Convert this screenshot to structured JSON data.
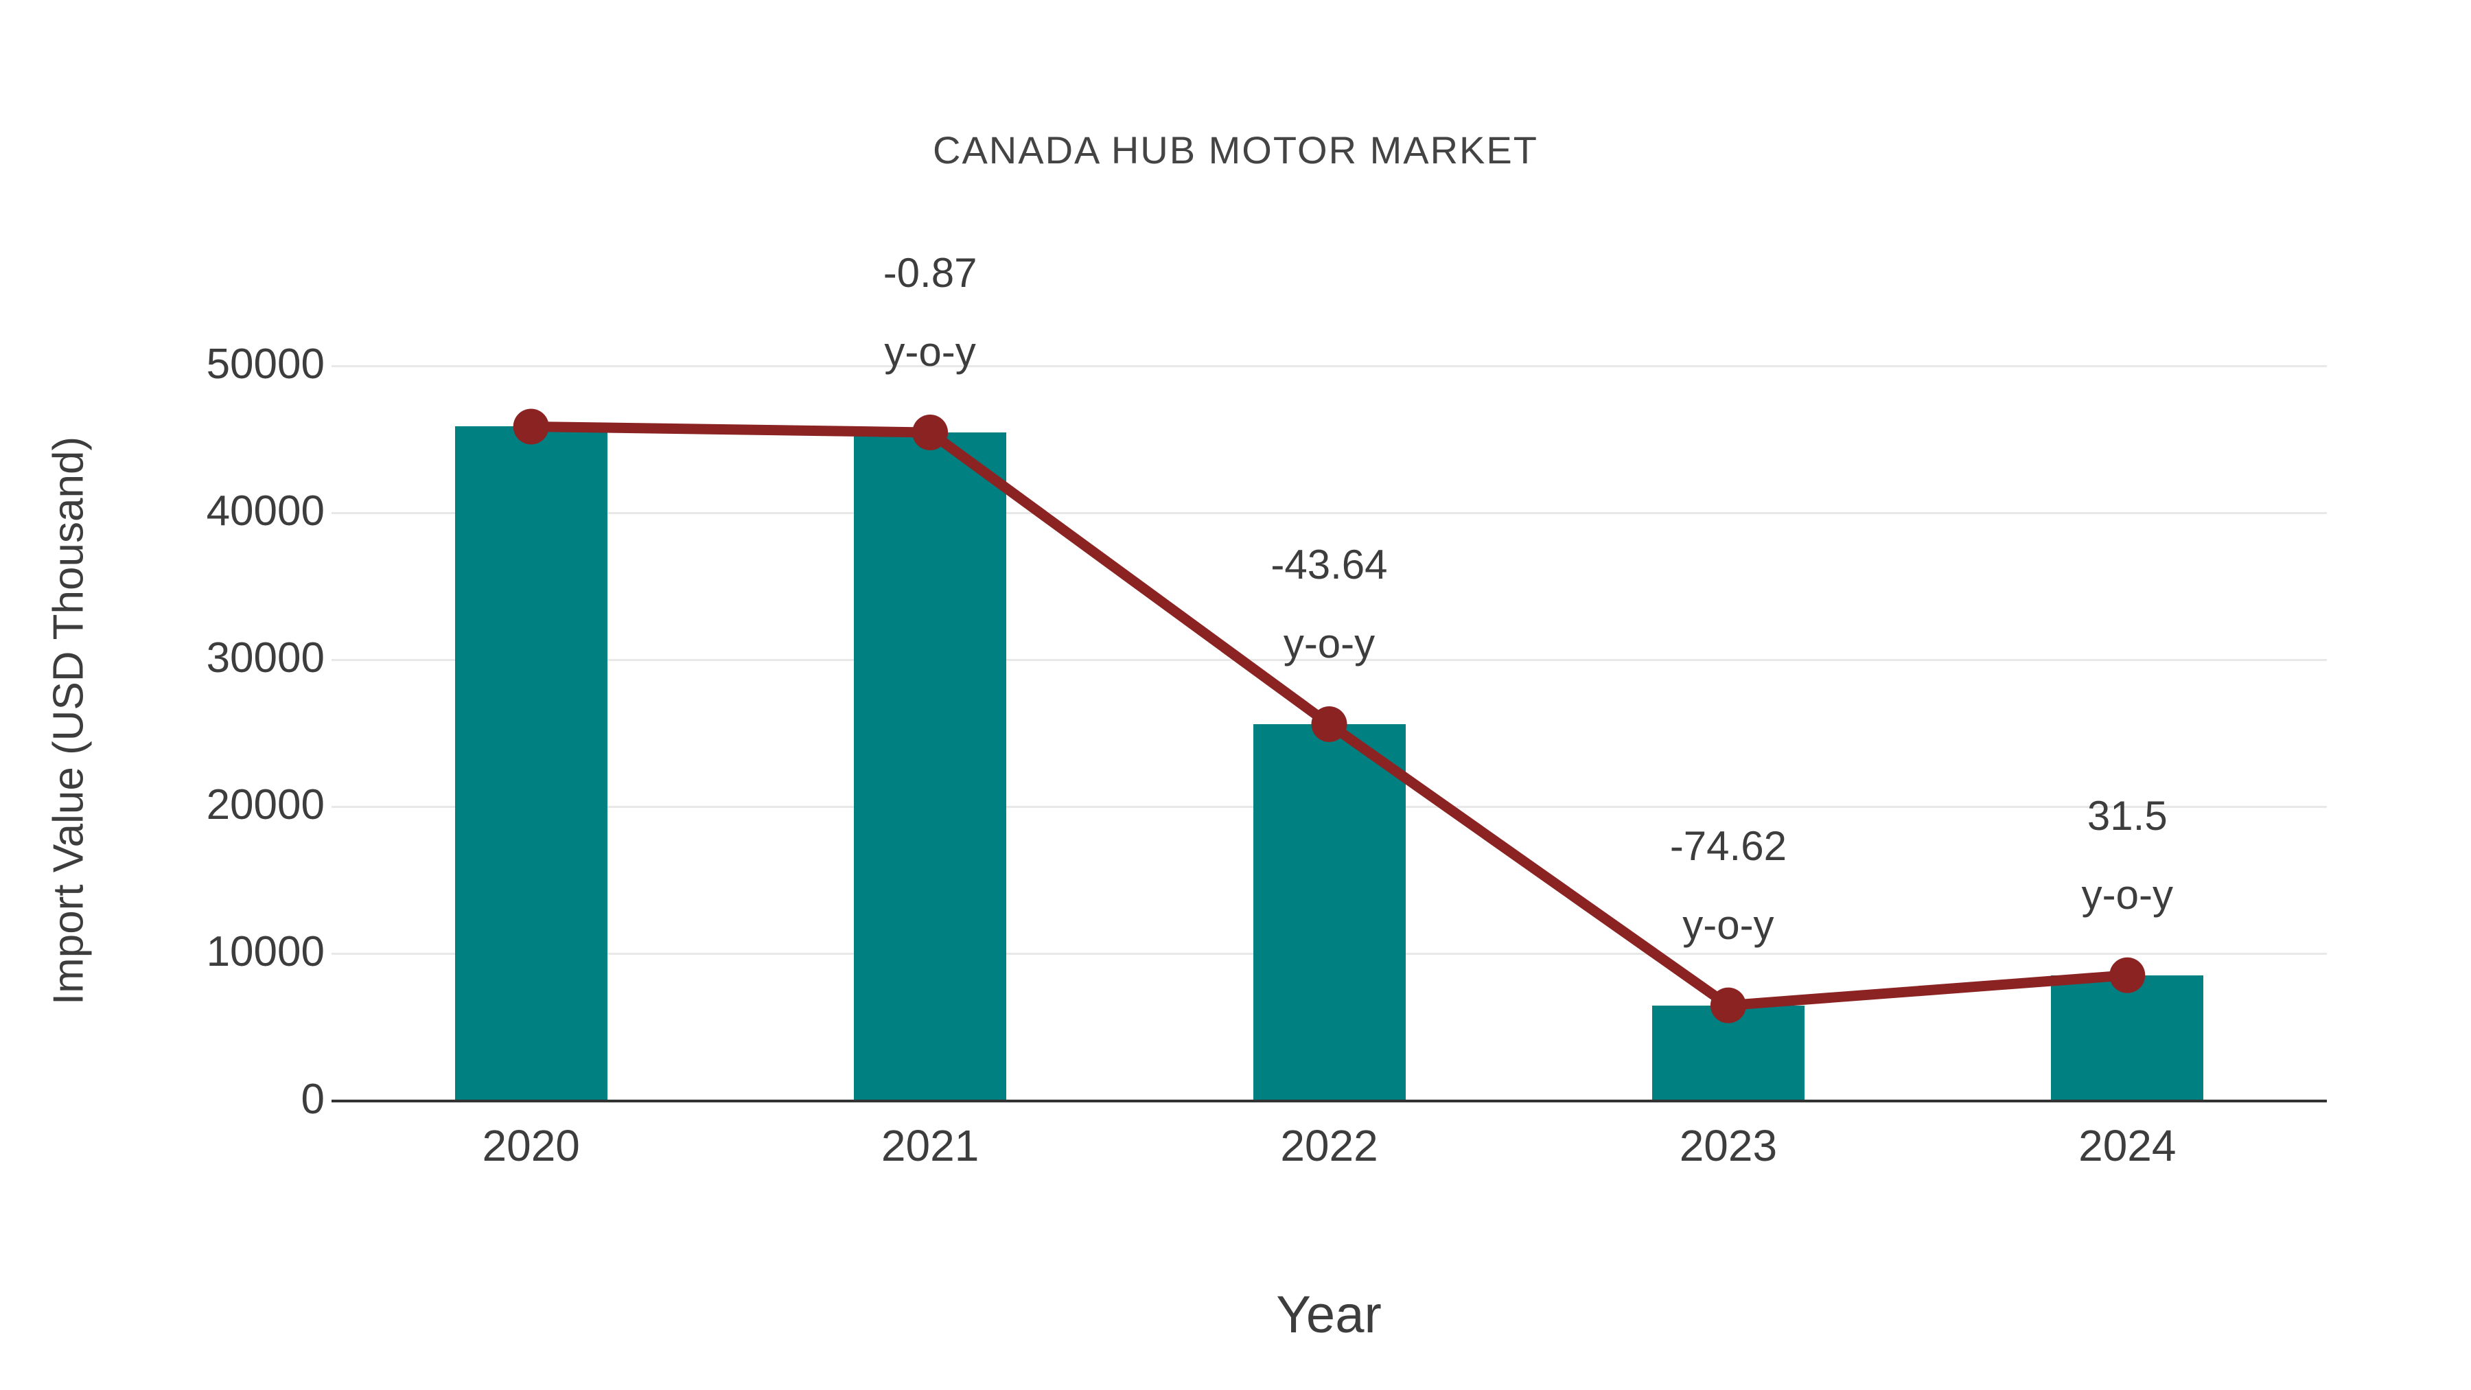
{
  "chart_data": {
    "type": "bar",
    "title": "CANADA HUB MOTOR MARKET",
    "xlabel": "Year",
    "ylabel": "Import Value (USD Thousand)",
    "categories": [
      "2020",
      "2021",
      "2022",
      "2023",
      "2024"
    ],
    "series": [
      {
        "name": "Import Value bars",
        "type": "bar",
        "values": [
          45870,
          45470,
          25630,
          6505,
          8555
        ]
      },
      {
        "name": "Import Value trend line",
        "type": "line",
        "values": [
          45870,
          45470,
          25630,
          6505,
          8555
        ]
      }
    ],
    "annotations": [
      {
        "category": "2021",
        "line1": "-0.87",
        "line2": "y-o-y"
      },
      {
        "category": "2022",
        "line1": "-43.64",
        "line2": "y-o-y"
      },
      {
        "category": "2023",
        "line1": "-74.62",
        "line2": "y-o-y"
      },
      {
        "category": "2024",
        "line1": "31.5",
        "line2": "y-o-y"
      }
    ],
    "y_ticks": [
      0,
      10000,
      20000,
      30000,
      40000,
      50000
    ],
    "ylim": [
      0,
      50000
    ],
    "grid": true,
    "legend": false
  },
  "colors": {
    "bar": "#008080",
    "line": "#8B2323",
    "marker": "#8B2323",
    "text": "#3d3d3d",
    "grid": "#e8e8e8",
    "axis": "#333333",
    "background": "#ffffff"
  }
}
